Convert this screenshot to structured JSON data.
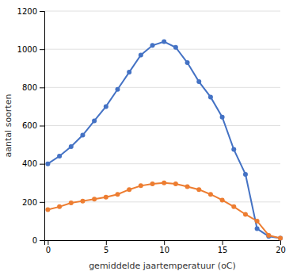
{
  "chart_data": {
    "type": "line",
    "xlabel": "gemiddelde jaartemperatuur (oC)",
    "ylabel": "aantal soorten",
    "x": [
      0,
      1,
      2,
      3,
      4,
      5,
      6,
      7,
      8,
      9,
      10,
      11,
      12,
      13,
      14,
      15,
      16,
      17,
      18,
      19,
      20
    ],
    "series": [
      {
        "color": "#4472C4",
        "values": [
          400,
          440,
          490,
          550,
          625,
          700,
          790,
          880,
          970,
          1020,
          1040,
          1010,
          930,
          830,
          750,
          645,
          475,
          345,
          60,
          20,
          10
        ]
      },
      {
        "color": "#ED7D31",
        "values": [
          160,
          175,
          195,
          205,
          215,
          225,
          240,
          265,
          285,
          295,
          300,
          295,
          280,
          265,
          240,
          210,
          175,
          135,
          100,
          25,
          10
        ]
      }
    ],
    "xlim": [
      -0.3,
      20
    ],
    "ylim": [
      0,
      1200
    ],
    "xticks": [
      0,
      5,
      10,
      15,
      20
    ],
    "yticks": [
      0,
      200,
      400,
      600,
      800,
      1000,
      1200
    ],
    "grid": true,
    "marker": "circle"
  }
}
